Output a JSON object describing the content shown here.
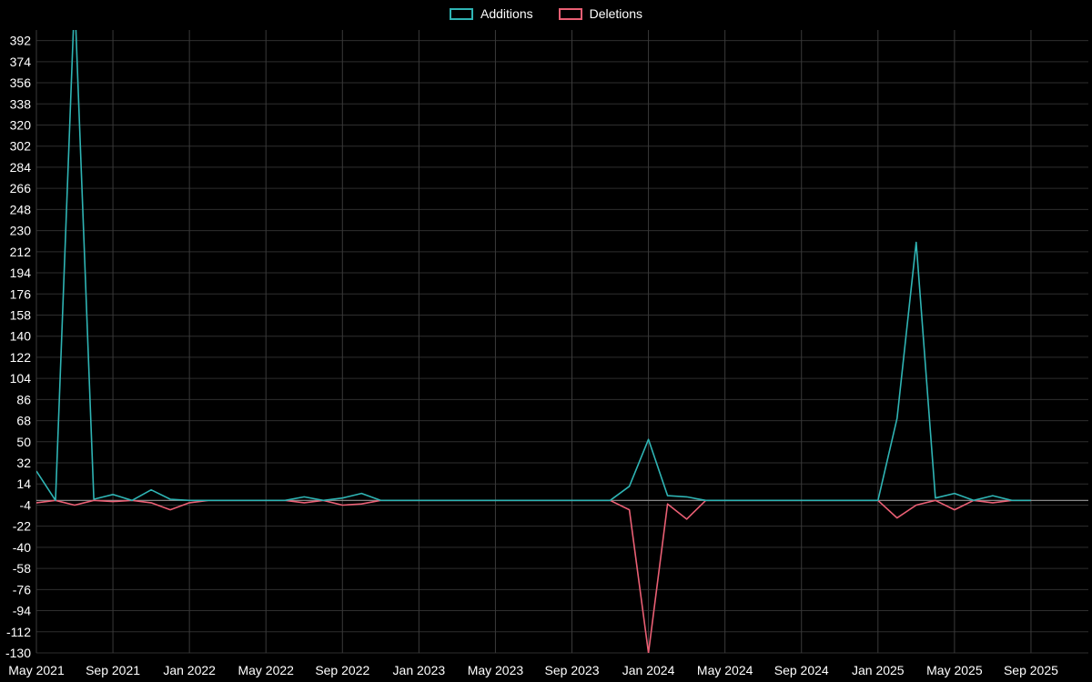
{
  "chart_data": {
    "type": "line",
    "title": "",
    "xlabel": "",
    "ylabel": "",
    "legend_position": "top-center",
    "background_color": "#000000",
    "grid": true,
    "grid_color_h": "#2e2e2e",
    "grid_color_v": "#3a3a3a",
    "zero_line_color": "#9a9a9a",
    "axis_text_color": "#ffffff",
    "ylim": [
      -130,
      401
    ],
    "x_extent": 55,
    "y_ticks": [
      392,
      374,
      356,
      338,
      320,
      302,
      284,
      266,
      248,
      230,
      212,
      194,
      176,
      158,
      140,
      122,
      104,
      86,
      68,
      50,
      32,
      14,
      -4,
      -22,
      -40,
      -58,
      -76,
      -94,
      -112,
      -130
    ],
    "x_tick_labels": [
      "May 2021",
      "Sep 2021",
      "Jan 2022",
      "May 2022",
      "Sep 2022",
      "Jan 2023",
      "May 2023",
      "Sep 2023",
      "Jan 2024",
      "May 2024",
      "Sep 2024",
      "Jan 2025",
      "May 2025",
      "Sep 2025"
    ],
    "x_tick_indices": [
      0,
      4,
      8,
      12,
      16,
      20,
      24,
      28,
      32,
      36,
      40,
      44,
      48,
      52
    ],
    "x": [
      "2021-05",
      "2021-06",
      "2021-07",
      "2021-08",
      "2021-09",
      "2021-10",
      "2021-11",
      "2021-12",
      "2022-01",
      "2022-02",
      "2022-03",
      "2022-04",
      "2022-05",
      "2022-06",
      "2022-07",
      "2022-08",
      "2022-09",
      "2022-10",
      "2022-11",
      "2022-12",
      "2023-01",
      "2023-02",
      "2023-03",
      "2023-04",
      "2023-05",
      "2023-06",
      "2023-07",
      "2023-08",
      "2023-09",
      "2023-10",
      "2023-11",
      "2023-12",
      "2024-01",
      "2024-02",
      "2024-03",
      "2024-04",
      "2024-05",
      "2024-06",
      "2024-07",
      "2024-08",
      "2024-09",
      "2024-10",
      "2024-11",
      "2024-12",
      "2025-01",
      "2025-02",
      "2025-03",
      "2025-04",
      "2025-05",
      "2025-06",
      "2025-07",
      "2025-08",
      "2025-09"
    ],
    "series": [
      {
        "name": "Additions",
        "color": "#2fb4b4",
        "values": [
          25,
          0,
          430,
          1,
          5,
          0,
          9,
          1,
          0,
          0,
          0,
          0,
          0,
          0,
          3,
          0,
          2,
          6,
          0,
          0,
          0,
          0,
          0,
          0,
          0,
          0,
          0,
          0,
          0,
          0,
          0,
          12,
          52,
          4,
          3,
          0,
          0,
          0,
          0,
          0,
          0,
          0,
          0,
          0,
          0,
          70,
          220,
          2,
          6,
          0,
          4,
          0,
          0
        ]
      },
      {
        "name": "Deletions",
        "color": "#ea5f74",
        "values": [
          -2,
          0,
          -4,
          0,
          -1,
          0,
          -2,
          -8,
          -2,
          0,
          0,
          0,
          0,
          0,
          -2,
          0,
          -4,
          -3,
          0,
          0,
          0,
          0,
          0,
          0,
          0,
          0,
          0,
          0,
          0,
          0,
          0,
          -8,
          -130,
          -3,
          -16,
          0,
          0,
          0,
          0,
          0,
          0,
          0,
          0,
          0,
          0,
          -15,
          -4,
          0,
          -8,
          0,
          -2,
          0,
          0
        ]
      }
    ]
  },
  "legend": {
    "additions_label": "Additions",
    "deletions_label": "Deletions"
  }
}
